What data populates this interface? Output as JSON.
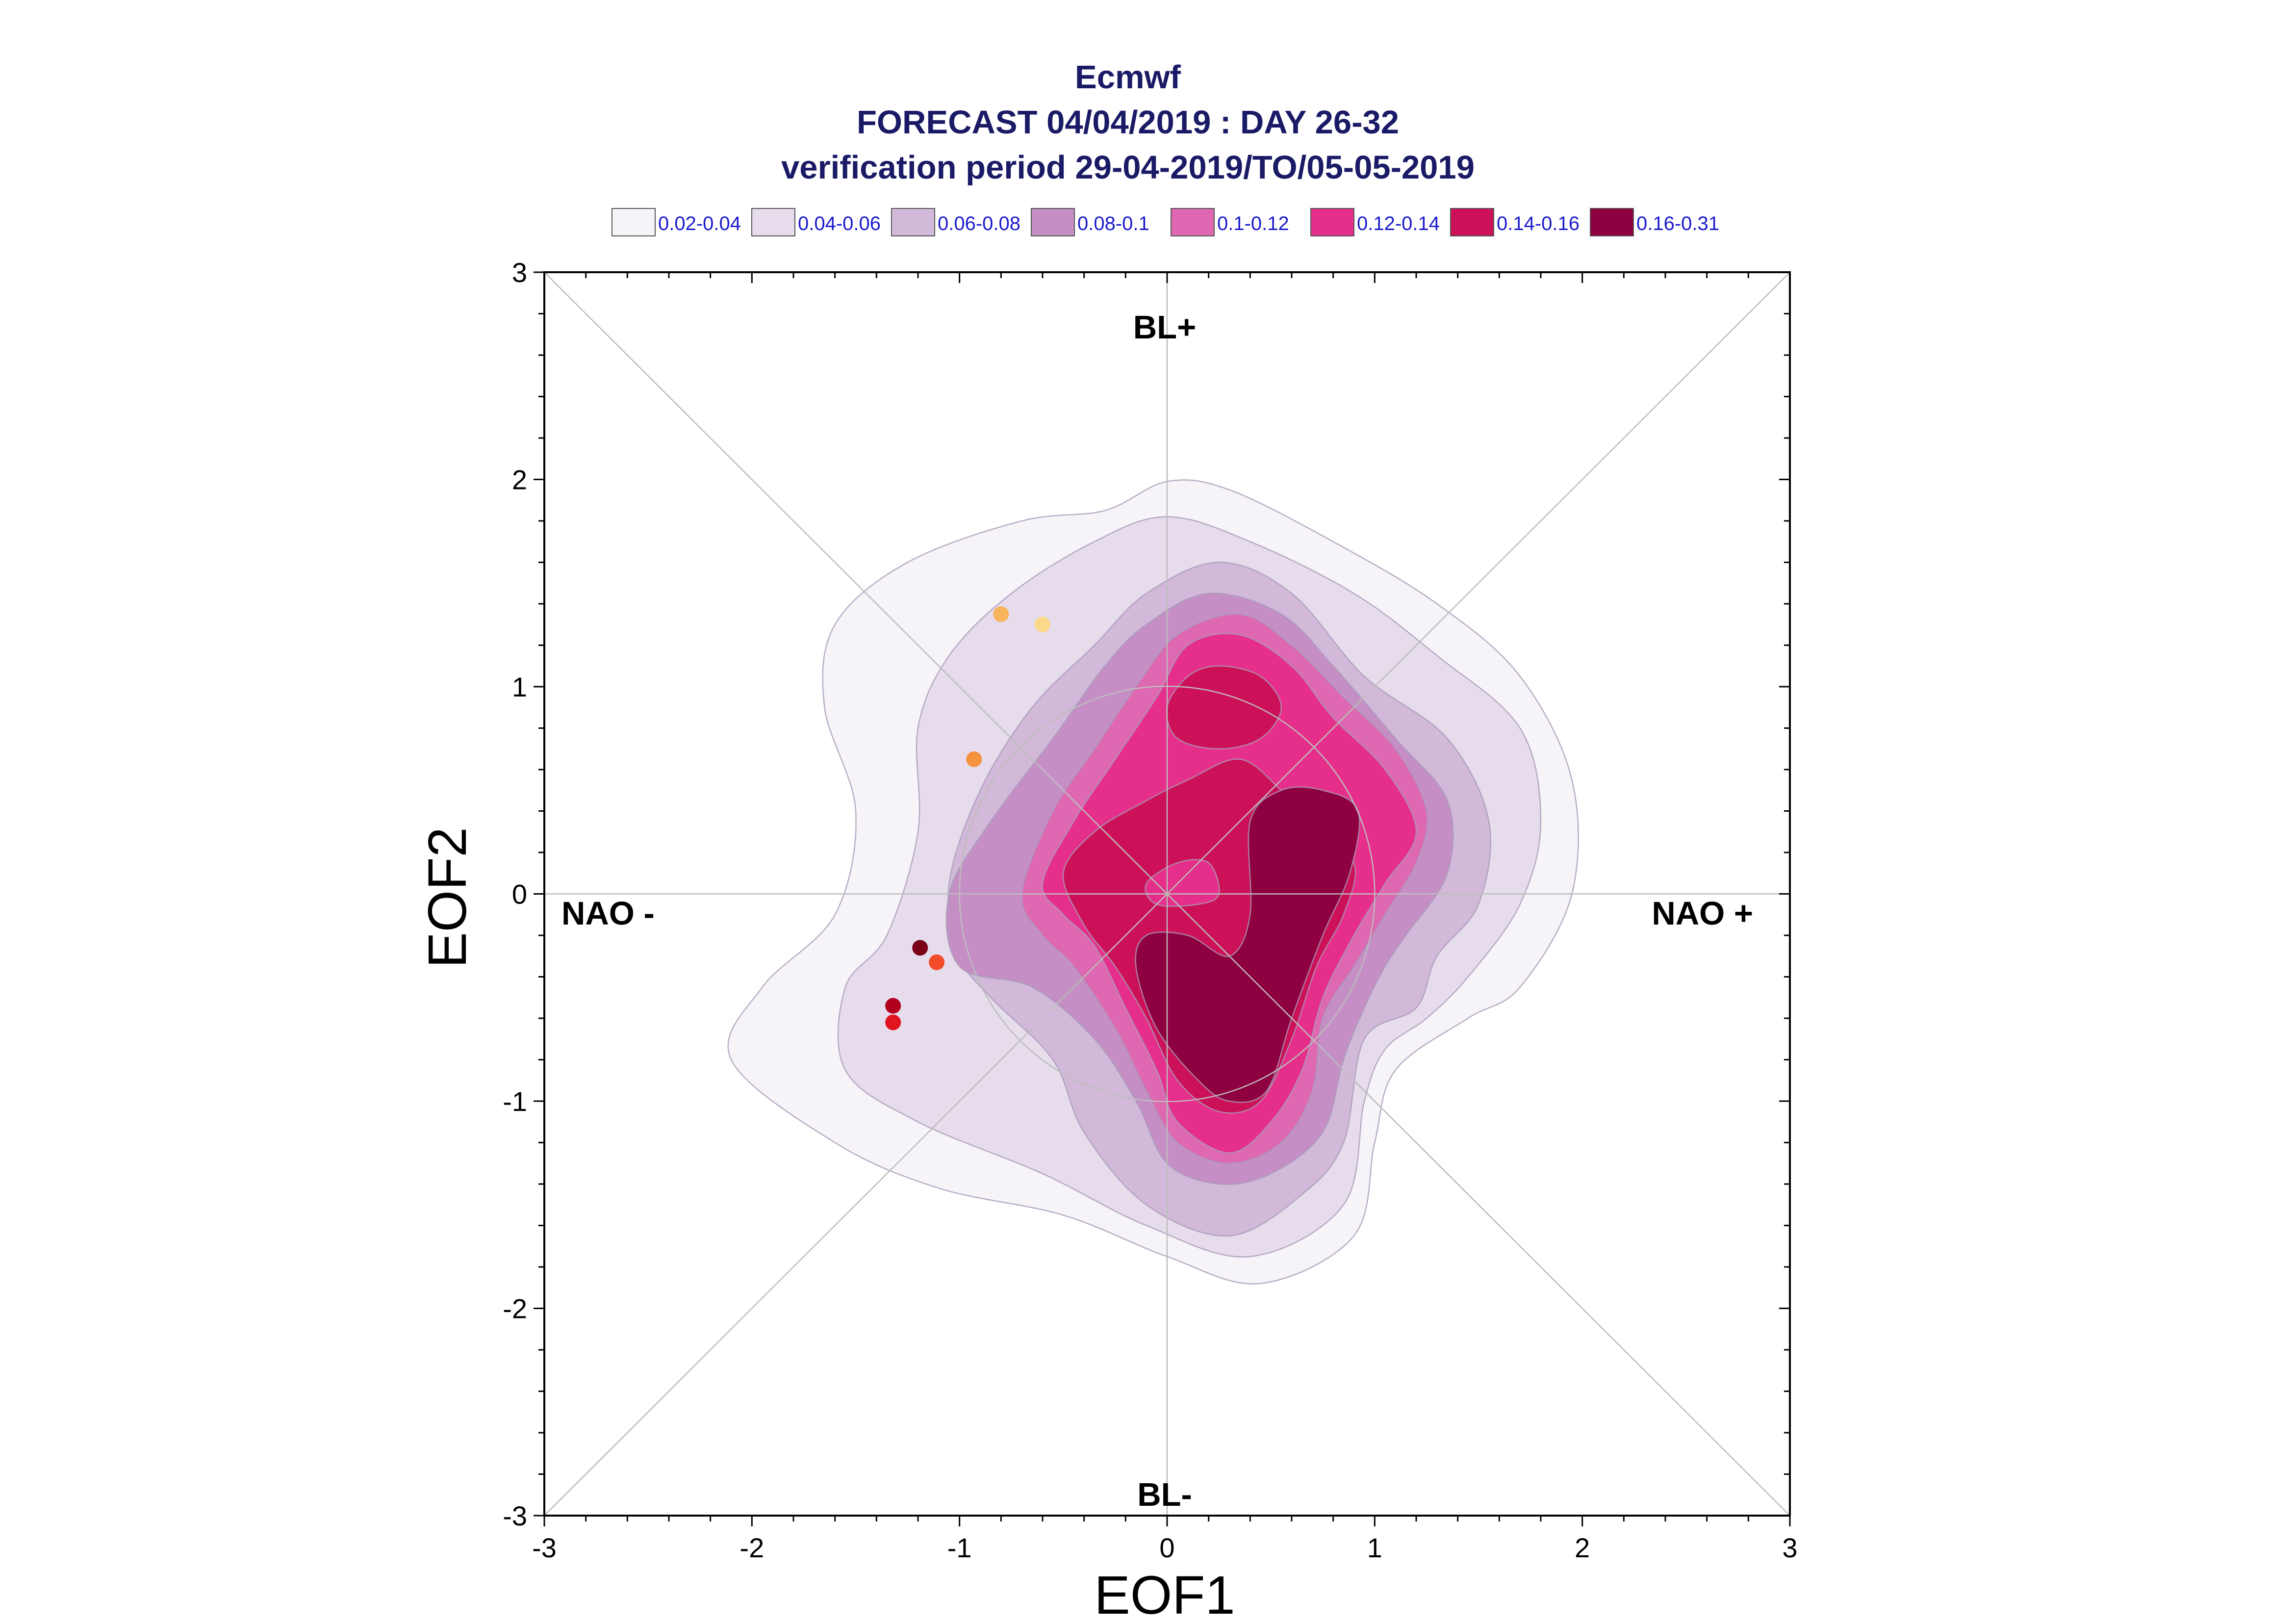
{
  "chart_data": {
    "type": "contour-scatter",
    "title_lines": [
      "Ecmwf",
      "FORECAST 04/04/2019 : DAY 26-32",
      "verification period 29-04-2019/TO/05-05-2019"
    ],
    "xlabel": "EOF1",
    "ylabel": "EOF2",
    "xlim": [
      -3,
      3
    ],
    "ylim": [
      -3,
      3
    ],
    "x_ticks": [
      "-3",
      "-2",
      "-1",
      "0",
      "1",
      "2",
      "3"
    ],
    "y_ticks": [
      "-3",
      "-2",
      "-1",
      "0",
      "1",
      "2",
      "3"
    ],
    "regime_labels": {
      "top": "BL+",
      "bottom": "BL-",
      "left": "NAO -",
      "right": "NAO +"
    },
    "legend": [
      {
        "label": "0.02-0.04",
        "color": "#f6f3f9"
      },
      {
        "label": "0.04-0.06",
        "color": "#e6dcec"
      },
      {
        "label": "0.06-0.08",
        "color": "#d2b9d9"
      },
      {
        "label": "0.08-0.1",
        "color": "#c58fc6"
      },
      {
        "label": "0.1-0.12",
        "color": "#de68b2"
      },
      {
        "label": "0.12-0.14",
        "color": "#e62f8a"
      },
      {
        "label": "0.14-0.16",
        "color": "#cc1158"
      },
      {
        "label": "0.16-0.31",
        "color": "#8f0040"
      }
    ],
    "density_levels": [
      {
        "range": "0.02-0.04",
        "color": "#f6f3f9",
        "polygons": [
          [
            [
              -1.6,
              -0.1
            ],
            [
              -1.5,
              0.4
            ],
            [
              -1.65,
              0.9
            ],
            [
              -1.6,
              1.3
            ],
            [
              -1.25,
              1.6
            ],
            [
              -0.7,
              1.8
            ],
            [
              -0.3,
              1.85
            ],
            [
              0.0,
              1.99
            ],
            [
              0.3,
              1.95
            ],
            [
              0.8,
              1.7
            ],
            [
              1.3,
              1.4
            ],
            [
              1.7,
              1.05
            ],
            [
              1.95,
              0.55
            ],
            [
              1.95,
              0.0
            ],
            [
              1.7,
              -0.45
            ],
            [
              1.45,
              -0.6
            ],
            [
              1.1,
              -0.85
            ],
            [
              1.0,
              -1.2
            ],
            [
              0.9,
              -1.65
            ],
            [
              0.45,
              -1.88
            ],
            [
              0.0,
              -1.75
            ],
            [
              -0.5,
              -1.55
            ],
            [
              -1.1,
              -1.42
            ],
            [
              -1.6,
              -1.2
            ],
            [
              -2.1,
              -0.8
            ],
            [
              -1.95,
              -0.45
            ]
          ]
        ]
      },
      {
        "range": "0.04-0.06",
        "color": "#e6dcec",
        "polygons": [
          [
            [
              -1.35,
              -0.2
            ],
            [
              -1.2,
              0.3
            ],
            [
              -1.2,
              0.8
            ],
            [
              -1.05,
              1.15
            ],
            [
              -0.75,
              1.45
            ],
            [
              -0.35,
              1.7
            ],
            [
              0.0,
              1.82
            ],
            [
              0.4,
              1.7
            ],
            [
              0.9,
              1.45
            ],
            [
              1.3,
              1.15
            ],
            [
              1.7,
              0.8
            ],
            [
              1.8,
              0.35
            ],
            [
              1.7,
              -0.05
            ],
            [
              1.45,
              -0.4
            ],
            [
              1.25,
              -0.6
            ],
            [
              1.05,
              -0.75
            ],
            [
              0.95,
              -1.0
            ],
            [
              0.85,
              -1.5
            ],
            [
              0.4,
              -1.75
            ],
            [
              -0.1,
              -1.6
            ],
            [
              -0.6,
              -1.35
            ],
            [
              -1.2,
              -1.1
            ],
            [
              -1.55,
              -0.85
            ],
            [
              -1.55,
              -0.45
            ]
          ]
        ]
      },
      {
        "range": "0.06-0.08",
        "color": "#d2b9d9",
        "polygons": [
          [
            [
              -1.05,
              0.05
            ],
            [
              -0.9,
              0.5
            ],
            [
              -0.65,
              0.9
            ],
            [
              -0.35,
              1.2
            ],
            [
              -0.1,
              1.45
            ],
            [
              0.25,
              1.6
            ],
            [
              0.6,
              1.45
            ],
            [
              0.95,
              1.05
            ],
            [
              1.35,
              0.75
            ],
            [
              1.55,
              0.35
            ],
            [
              1.5,
              -0.05
            ],
            [
              1.3,
              -0.3
            ],
            [
              1.2,
              -0.55
            ],
            [
              0.95,
              -0.7
            ],
            [
              0.85,
              -1.2
            ],
            [
              0.65,
              -1.45
            ],
            [
              0.3,
              -1.65
            ],
            [
              -0.1,
              -1.5
            ],
            [
              -0.4,
              -1.15
            ],
            [
              -0.55,
              -0.8
            ],
            [
              -0.85,
              -0.5
            ],
            [
              -1.0,
              -0.3
            ]
          ]
        ]
      },
      {
        "range": "0.08-0.1",
        "color": "#c58fc6",
        "polygons": [
          [
            [
              -1.0,
              -0.35
            ],
            [
              -1.05,
              0.0
            ],
            [
              -0.85,
              0.35
            ],
            [
              -0.55,
              0.75
            ],
            [
              -0.3,
              1.1
            ],
            [
              -0.1,
              1.3
            ],
            [
              0.2,
              1.45
            ],
            [
              0.55,
              1.35
            ],
            [
              0.8,
              1.1
            ],
            [
              1.1,
              0.75
            ],
            [
              1.35,
              0.45
            ],
            [
              1.35,
              0.1
            ],
            [
              1.15,
              -0.2
            ],
            [
              1.05,
              -0.35
            ],
            [
              0.95,
              -0.55
            ],
            [
              0.85,
              -0.8
            ],
            [
              0.75,
              -1.15
            ],
            [
              0.5,
              -1.35
            ],
            [
              0.25,
              -1.4
            ],
            [
              0.0,
              -1.3
            ],
            [
              -0.15,
              -1.0
            ],
            [
              -0.35,
              -0.7
            ],
            [
              -0.65,
              -0.45
            ]
          ]
        ]
      },
      {
        "range": "0.1-0.12",
        "color": "#de68b2",
        "polygons": [
          [
            [
              -0.7,
              0.0
            ],
            [
              -0.55,
              0.4
            ],
            [
              -0.35,
              0.7
            ],
            [
              -0.15,
              1.0
            ],
            [
              0.05,
              1.25
            ],
            [
              0.35,
              1.35
            ],
            [
              0.6,
              1.2
            ],
            [
              0.85,
              0.95
            ],
            [
              1.1,
              0.7
            ],
            [
              1.25,
              0.4
            ],
            [
              1.2,
              0.15
            ],
            [
              1.05,
              -0.1
            ],
            [
              0.9,
              -0.35
            ],
            [
              0.75,
              -0.6
            ],
            [
              0.7,
              -0.95
            ],
            [
              0.55,
              -1.2
            ],
            [
              0.3,
              -1.3
            ],
            [
              0.05,
              -1.2
            ],
            [
              -0.1,
              -0.95
            ],
            [
              -0.25,
              -0.65
            ],
            [
              -0.45,
              -0.35
            ],
            [
              -0.6,
              -0.2
            ]
          ]
        ]
      },
      {
        "range": "0.12-0.14",
        "color": "#e62f8a",
        "polygons": [
          [
            [
              -0.6,
              0.05
            ],
            [
              -0.45,
              0.35
            ],
            [
              -0.25,
              0.65
            ],
            [
              -0.05,
              0.95
            ],
            [
              0.1,
              1.2
            ],
            [
              0.35,
              1.25
            ],
            [
              0.6,
              1.1
            ],
            [
              0.8,
              0.85
            ],
            [
              1.05,
              0.6
            ],
            [
              1.2,
              0.3
            ],
            [
              1.05,
              0.05
            ],
            [
              0.9,
              -0.2
            ],
            [
              0.75,
              -0.5
            ],
            [
              0.65,
              -0.85
            ],
            [
              0.5,
              -1.1
            ],
            [
              0.3,
              -1.25
            ],
            [
              0.05,
              -1.1
            ],
            [
              -0.05,
              -0.85
            ],
            [
              -0.2,
              -0.55
            ],
            [
              -0.35,
              -0.25
            ],
            [
              -0.5,
              -0.1
            ]
          ]
        ]
      },
      {
        "range": "0.14-0.16",
        "color": "#cc1158",
        "polygons": [
          [
            [
              -0.5,
              0.1
            ],
            [
              -0.35,
              0.3
            ],
            [
              -0.1,
              0.45
            ],
            [
              0.1,
              0.55
            ],
            [
              0.35,
              0.65
            ],
            [
              0.55,
              0.5
            ],
            [
              0.7,
              0.35
            ],
            [
              0.9,
              0.15
            ],
            [
              0.85,
              -0.1
            ],
            [
              0.72,
              -0.35
            ],
            [
              0.6,
              -0.7
            ],
            [
              0.45,
              -1.0
            ],
            [
              0.25,
              -1.05
            ],
            [
              0.05,
              -0.9
            ],
            [
              -0.1,
              -0.6
            ],
            [
              -0.25,
              -0.35
            ],
            [
              -0.4,
              -0.15
            ]
          ],
          [
            [
              0.0,
              0.9
            ],
            [
              0.1,
              1.05
            ],
            [
              0.25,
              1.1
            ],
            [
              0.45,
              1.05
            ],
            [
              0.55,
              0.9
            ],
            [
              0.45,
              0.75
            ],
            [
              0.25,
              0.7
            ],
            [
              0.05,
              0.75
            ]
          ]
        ]
      },
      {
        "range": "0.16-0.31",
        "color": "#8f0040",
        "polygons": [
          [
            [
              0.4,
              0.35
            ],
            [
              0.55,
              0.5
            ],
            [
              0.75,
              0.5
            ],
            [
              0.92,
              0.4
            ],
            [
              0.88,
              0.1
            ],
            [
              0.75,
              -0.2
            ],
            [
              0.6,
              -0.6
            ],
            [
              0.48,
              -0.95
            ],
            [
              0.3,
              -1.0
            ],
            [
              0.15,
              -0.9
            ],
            [
              -0.05,
              -0.65
            ],
            [
              -0.15,
              -0.35
            ],
            [
              -0.1,
              -0.2
            ],
            [
              0.1,
              -0.2
            ],
            [
              0.3,
              -0.3
            ],
            [
              0.4,
              -0.1
            ]
          ]
        ]
      }
    ],
    "overlay_polygons": [
      {
        "range": "0.12-0.14",
        "color": "#e62f8a",
        "polygons": [
          [
            [
              -0.1,
              0.05
            ],
            [
              0.05,
              0.15
            ],
            [
              0.2,
              0.15
            ],
            [
              0.25,
              0.0
            ],
            [
              0.15,
              -0.05
            ],
            [
              -0.05,
              -0.05
            ]
          ]
        ]
      }
    ],
    "points": [
      {
        "x": -0.8,
        "y": 1.35,
        "color": "#f8b45a"
      },
      {
        "x": -0.6,
        "y": 1.3,
        "color": "#fcd98a"
      },
      {
        "x": -0.93,
        "y": 0.65,
        "color": "#f6923e"
      },
      {
        "x": -1.19,
        "y": -0.26,
        "color": "#7a0018"
      },
      {
        "x": -1.11,
        "y": -0.33,
        "color": "#f24b2a"
      },
      {
        "x": -1.32,
        "y": -0.54,
        "color": "#b0001e"
      },
      {
        "x": -1.32,
        "y": -0.62,
        "color": "#e0141e"
      }
    ]
  }
}
